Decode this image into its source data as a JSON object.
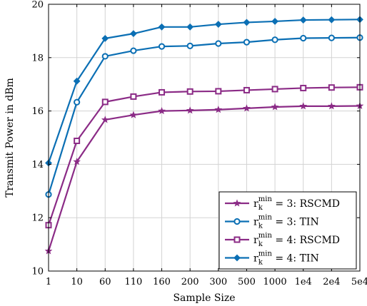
{
  "chart_data": {
    "type": "line",
    "title": "",
    "xlabel": "Sample Size",
    "ylabel": "Transmit Power in dBm",
    "categories": [
      "1",
      "10",
      "60",
      "110",
      "160",
      "200",
      "300",
      "500",
      "1000",
      "1e4",
      "2e4",
      "5e4"
    ],
    "ylim": [
      10,
      20
    ],
    "yticks": [
      "10",
      "12",
      "14",
      "16",
      "18",
      "20"
    ],
    "grid": true,
    "legend_position": "bottom-right",
    "series": [
      {
        "name": "r_k^min = 3: RSCMD",
        "legend": {
          "var": "r",
          "sub": "k",
          "sup": "min",
          "rest": " = 3:  RSCMD"
        },
        "marker": "star",
        "color": "#8b2b86",
        "values": [
          10.75,
          14.1,
          15.67,
          15.85,
          16.0,
          16.02,
          16.05,
          16.1,
          16.15,
          16.18,
          16.18,
          16.19
        ]
      },
      {
        "name": "r_k^min = 3: TIN",
        "legend": {
          "var": "r",
          "sub": "k",
          "sup": "min",
          "rest": " = 3:  TIN"
        },
        "marker": "circle",
        "color": "#0b6fb4",
        "values": [
          12.87,
          16.33,
          18.05,
          18.26,
          18.42,
          18.44,
          18.53,
          18.58,
          18.67,
          18.73,
          18.74,
          18.75
        ]
      },
      {
        "name": "r_k^min = 4: RSCMD",
        "legend": {
          "var": "r",
          "sub": "k",
          "sup": "min",
          "rest": " = 4:  RSCMD"
        },
        "marker": "square",
        "color": "#8b2b86",
        "values": [
          11.72,
          14.88,
          16.34,
          16.54,
          16.7,
          16.73,
          16.74,
          16.78,
          16.82,
          16.86,
          16.88,
          16.89
        ]
      },
      {
        "name": "r_k^min = 4: TIN",
        "legend": {
          "var": "r",
          "sub": "k",
          "sup": "min",
          "rest": " = 4:  TIN"
        },
        "marker": "diamond",
        "color": "#0b6fb4",
        "values": [
          14.05,
          17.12,
          18.72,
          18.9,
          19.15,
          19.15,
          19.25,
          19.32,
          19.36,
          19.41,
          19.42,
          19.43
        ]
      }
    ]
  }
}
